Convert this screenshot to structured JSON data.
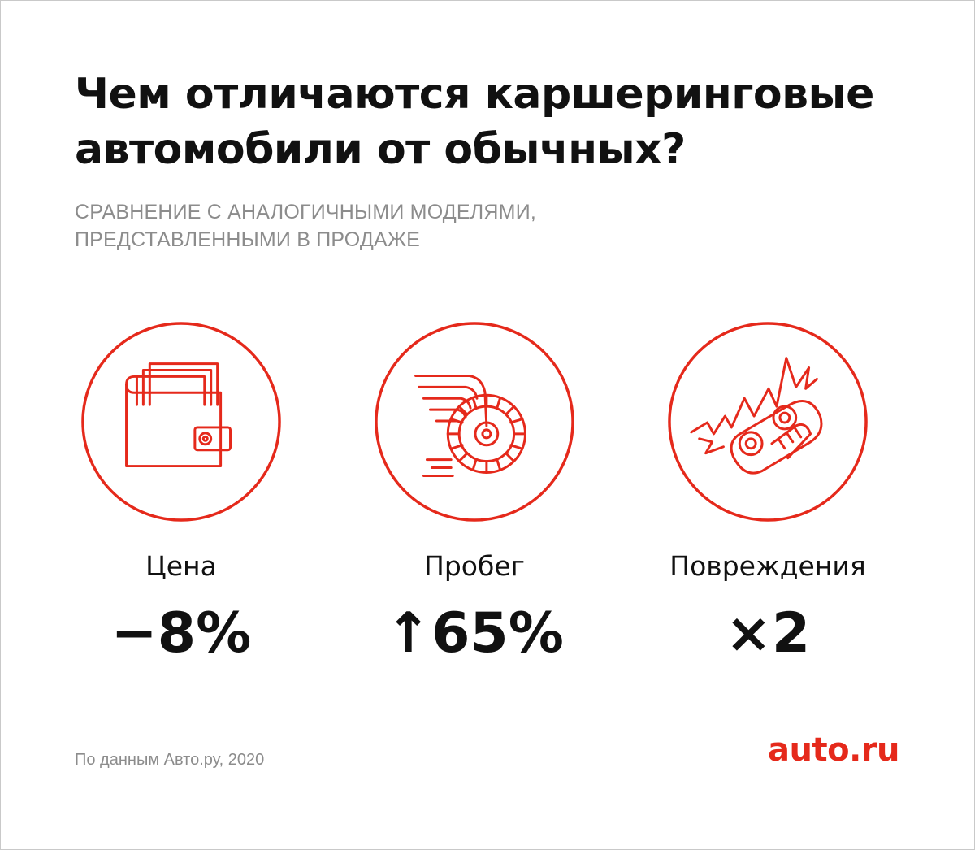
{
  "title": {
    "line1": "Чем отличаются каршеринговые",
    "line2": "автомобили от обычных?"
  },
  "subtitle": {
    "line1": "СРАВНЕНИЕ С АНАЛОГИЧНЫМИ МОДЕЛЯМИ,",
    "line2": "ПРЕДСТАВЛЕННЫМИ В ПРОДАЖЕ"
  },
  "stats": [
    {
      "icon": "wallet-icon",
      "label": "Цена",
      "value": "−8%"
    },
    {
      "icon": "winged-wheel-icon",
      "label": "Пробег",
      "value": "↑65%"
    },
    {
      "icon": "crashed-car-icon",
      "label": "Повреждения",
      "value": "×2"
    }
  ],
  "footnote": "По данным Авто.ру, 2020",
  "logo": "auto.ru",
  "colors": {
    "accent": "#e5291b",
    "text": "#111111",
    "muted": "#8c8c8c",
    "background": "#ffffff"
  }
}
